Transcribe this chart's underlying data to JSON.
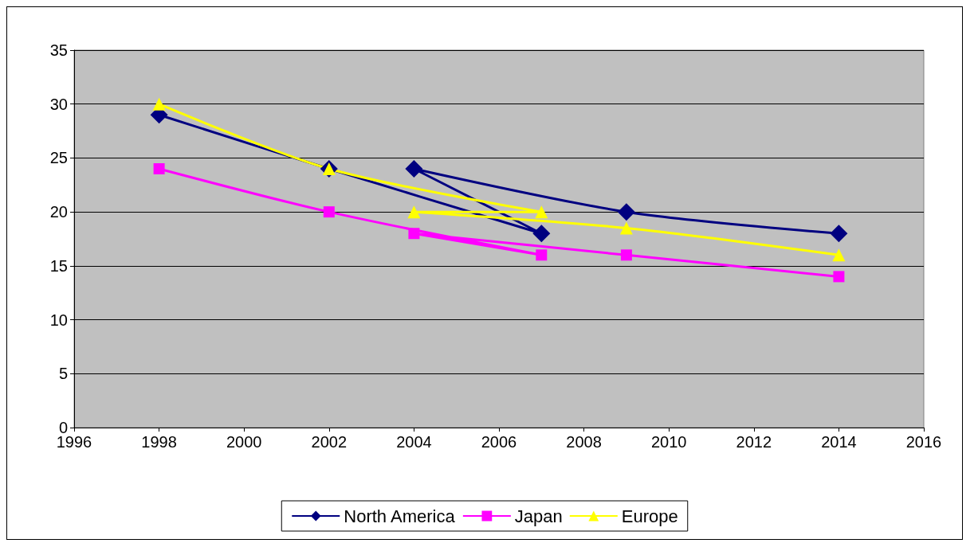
{
  "chart_data": {
    "type": "line",
    "xlim": [
      1996,
      2016
    ],
    "xticks": [
      1996,
      1998,
      2000,
      2002,
      2004,
      2006,
      2008,
      2010,
      2012,
      2014,
      2016
    ],
    "ylim": [
      0,
      35
    ],
    "yticks": [
      0,
      5,
      10,
      15,
      20,
      25,
      30,
      35
    ],
    "grid": "y",
    "legend": "bottom",
    "series": [
      {
        "name": "North America",
        "color": "#000080",
        "marker": "diamond",
        "x": [
          1998,
          2002,
          2007,
          2004,
          2009,
          2014
        ],
        "values": [
          29,
          24,
          18,
          24,
          20,
          18
        ]
      },
      {
        "name": "Japan",
        "color": "#ff00ff",
        "marker": "square",
        "x": [
          1998,
          2002,
          2007,
          2004,
          2009,
          2014
        ],
        "values": [
          24,
          20,
          16,
          18,
          16,
          14
        ]
      },
      {
        "name": "Europe",
        "color": "#ffff00",
        "marker": "triangle",
        "x": [
          1998,
          2002,
          2007,
          2004,
          2009,
          2014
        ],
        "values": [
          30,
          24,
          20,
          20,
          18.5,
          16
        ]
      }
    ]
  }
}
